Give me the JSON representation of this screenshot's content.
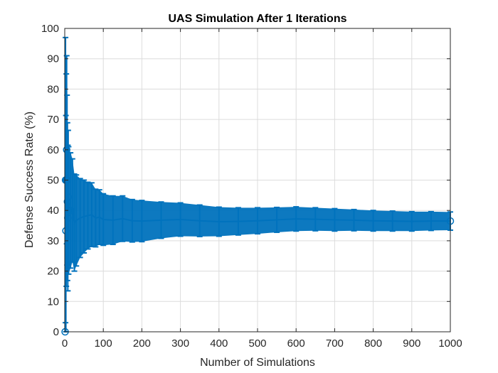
{
  "chart_data": {
    "type": "line",
    "title": "UAS Simulation After 1 Iterations",
    "xlabel": "Number of Simulations",
    "ylabel": "Defense Success Rate (%)",
    "xlim": [
      0,
      1000
    ],
    "ylim": [
      0,
      100
    ],
    "xticks": [
      "0",
      "100",
      "200",
      "300",
      "400",
      "500",
      "600",
      "700",
      "800",
      "900",
      "1000"
    ],
    "yticks": [
      "0",
      "10",
      "20",
      "30",
      "40",
      "50",
      "60",
      "70",
      "80",
      "90",
      "100"
    ],
    "grid": true,
    "color": "#0072BD",
    "series": [
      {
        "marker": "circle",
        "error_bars": true,
        "x": [
          1,
          2,
          3,
          4,
          5,
          6,
          7,
          8,
          9,
          10,
          15,
          20,
          25,
          30,
          40,
          50,
          60,
          70,
          80,
          90,
          100,
          125,
          150,
          175,
          200,
          250,
          300,
          350,
          400,
          450,
          500,
          550,
          600,
          650,
          700,
          750,
          800,
          850,
          900,
          950,
          1000
        ],
        "y": [
          0,
          50,
          33.3,
          50,
          60,
          50,
          42.9,
          37.5,
          44.4,
          40,
          40,
          40,
          36,
          36.7,
          37.5,
          38,
          38.3,
          38.6,
          37.5,
          37.8,
          37,
          36.8,
          37.3,
          36.6,
          36.5,
          36.8,
          37,
          36.6,
          36.3,
          36.4,
          36.6,
          36.9,
          37.2,
          37.1,
          36.9,
          36.8,
          36.6,
          36.5,
          36.4,
          36.5,
          36.5
        ],
        "err": [
          0,
          47,
          38,
          35,
          31,
          28,
          26,
          24,
          22,
          21,
          19,
          17,
          16,
          15,
          13,
          12,
          11,
          10.5,
          9.5,
          9,
          8.5,
          8,
          7.5,
          7,
          6.8,
          6,
          5.5,
          5.2,
          4.8,
          4.5,
          4.3,
          4.1,
          4,
          3.8,
          3.7,
          3.5,
          3.4,
          3.3,
          3.2,
          3.1,
          3
        ]
      }
    ]
  }
}
